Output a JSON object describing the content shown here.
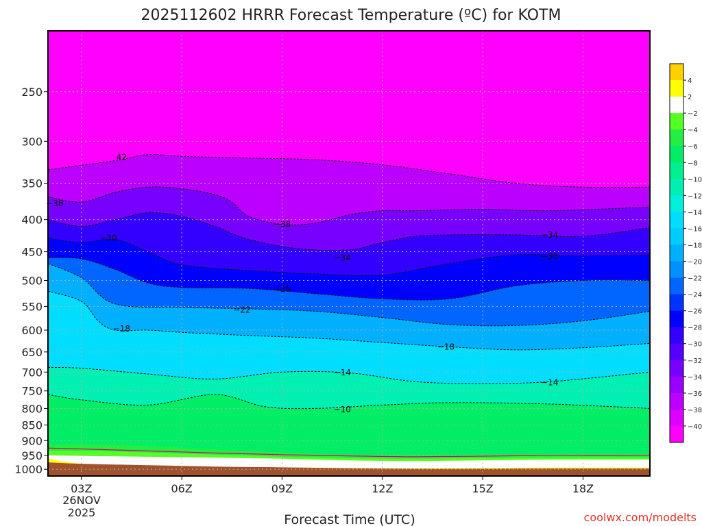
{
  "chart_data": {
    "type": "heatmap",
    "title": "2025112602 HRRR Forecast Temperature (ºC) for KOTM",
    "xlabel": "Forecast Time (UTC)",
    "ylabel": "",
    "x_ticks": [
      "03Z",
      "06Z",
      "09Z",
      "12Z",
      "15Z",
      "18Z"
    ],
    "x_tick_hours": [
      3,
      6,
      9,
      12,
      15,
      18
    ],
    "x_range": [
      2,
      20
    ],
    "date_label": [
      "26NOV",
      "2025"
    ],
    "y_ticks": [
      250,
      300,
      350,
      400,
      450,
      500,
      550,
      600,
      650,
      700,
      750,
      800,
      850,
      900,
      950,
      1000
    ],
    "y_range_hPa": [
      200,
      1025
    ],
    "y_scale": "log",
    "grid": true,
    "legend_placement": "right",
    "colorbar": {
      "labels": [
        4,
        2,
        -2,
        -4,
        -6,
        -8,
        -10,
        -12,
        -14,
        -16,
        -18,
        -20,
        -22,
        -24,
        -26,
        -28,
        -30,
        -32,
        -34,
        -36,
        -38,
        -40
      ],
      "colors": [
        "#ffd000",
        "#ffff00",
        "#ffffff",
        "#55ff22",
        "#22ee44",
        "#00ee66",
        "#00f090",
        "#00f0b4",
        "#00f0dc",
        "#00ddff",
        "#00ccff",
        "#00b0ff",
        "#0090ff",
        "#0066ff",
        "#0033ff",
        "#0000ff",
        "#3300ff",
        "#5500ff",
        "#7700ff",
        "#9900ff",
        "#bb00ff",
        "#dd00ff",
        "#ff00ff"
      ]
    },
    "isotherms": [
      {
        "label": "-10",
        "hours": [
          2,
          3,
          5,
          7,
          8.5,
          10,
          12,
          14,
          17,
          20
        ],
        "pressure": [
          760,
          775,
          790,
          760,
          795,
          800,
          790,
          783,
          787,
          800
        ]
      },
      {
        "label": "-14",
        "hours": [
          2,
          3,
          5,
          7,
          9,
          11,
          13,
          15,
          17,
          20
        ],
        "pressure": [
          688,
          690,
          705,
          718,
          700,
          702,
          725,
          730,
          725,
          700
        ]
      },
      {
        "label": "-18",
        "hours": [
          2,
          3,
          3.5,
          4,
          5,
          6,
          8,
          10,
          12,
          14,
          16,
          18,
          20
        ],
        "pressure": [
          520,
          540,
          580,
          600,
          600,
          605,
          612,
          618,
          628,
          638,
          645,
          640,
          630
        ]
      },
      {
        "label": "-22",
        "hours": [
          2,
          3,
          4,
          6,
          8,
          10,
          12,
          14,
          16,
          18,
          20
        ],
        "pressure": [
          470,
          495,
          545,
          552,
          555,
          560,
          573,
          588,
          590,
          580,
          560
        ]
      },
      {
        "label": "-26",
        "hours": [
          2,
          3,
          4,
          5,
          6,
          8,
          10,
          12,
          14,
          16,
          18,
          20
        ],
        "pressure": [
          460,
          462,
          480,
          505,
          513,
          515,
          525,
          535,
          535,
          510,
          500,
          500
        ]
      },
      {
        "label": "-30",
        "hours": [
          2,
          3,
          4,
          5,
          6,
          8,
          10,
          12,
          14,
          16,
          18,
          20
        ],
        "pressure": [
          428,
          435,
          430,
          450,
          472,
          482,
          488,
          490,
          470,
          455,
          457,
          455
        ]
      },
      {
        "label": "-34",
        "hours": [
          2,
          3,
          4,
          5,
          6,
          7,
          8,
          9.5,
          11,
          12,
          13,
          14,
          16,
          18,
          20
        ],
        "pressure": [
          400,
          410,
          400,
          390,
          395,
          410,
          430,
          445,
          447,
          435,
          425,
          423,
          423,
          425,
          412
        ]
      },
      {
        "label": "-38",
        "hours": [
          2,
          3,
          4,
          5,
          6,
          7,
          7.5,
          8,
          9,
          10,
          11,
          12,
          13,
          15,
          17,
          20
        ],
        "pressure": [
          368,
          375,
          362,
          355,
          357,
          365,
          375,
          395,
          407,
          405,
          393,
          387,
          387,
          385,
          387,
          382
        ]
      },
      {
        "label": "-42",
        "hours": [
          2,
          4,
          5,
          6,
          8,
          10,
          12,
          14,
          16,
          18,
          20
        ],
        "pressure": [
          333,
          322,
          315,
          317,
          319,
          321,
          327,
          338,
          350,
          355,
          355
        ]
      }
    ],
    "inline_labels": [
      {
        "text": "−38",
        "hour": 2.2,
        "pressure": 377
      },
      {
        "text": "−30",
        "hour": 3.8,
        "pressure": 428
      },
      {
        "text": "42",
        "hour": 4.2,
        "pressure": 318
      },
      {
        "text": "−18",
        "hour": 4.2,
        "pressure": 597
      },
      {
        "text": "−22",
        "hour": 7.8,
        "pressure": 557
      },
      {
        "text": "−26",
        "hour": 9.0,
        "pressure": 516
      },
      {
        "text": "−38",
        "hour": 9.0,
        "pressure": 407
      },
      {
        "text": "−34",
        "hour": 10.8,
        "pressure": 460
      },
      {
        "text": "−14",
        "hour": 10.8,
        "pressure": 701
      },
      {
        "text": "−10",
        "hour": 10.8,
        "pressure": 803
      },
      {
        "text": "−18",
        "hour": 13.9,
        "pressure": 638
      },
      {
        "text": "−34",
        "hour": 17.0,
        "pressure": 423
      },
      {
        "text": "−30",
        "hour": 17.0,
        "pressure": 458
      },
      {
        "text": "−14",
        "hour": 17.0,
        "pressure": 727
      }
    ],
    "ground_color": "#a0522d"
  },
  "credit": "coolwx.com/modelts"
}
